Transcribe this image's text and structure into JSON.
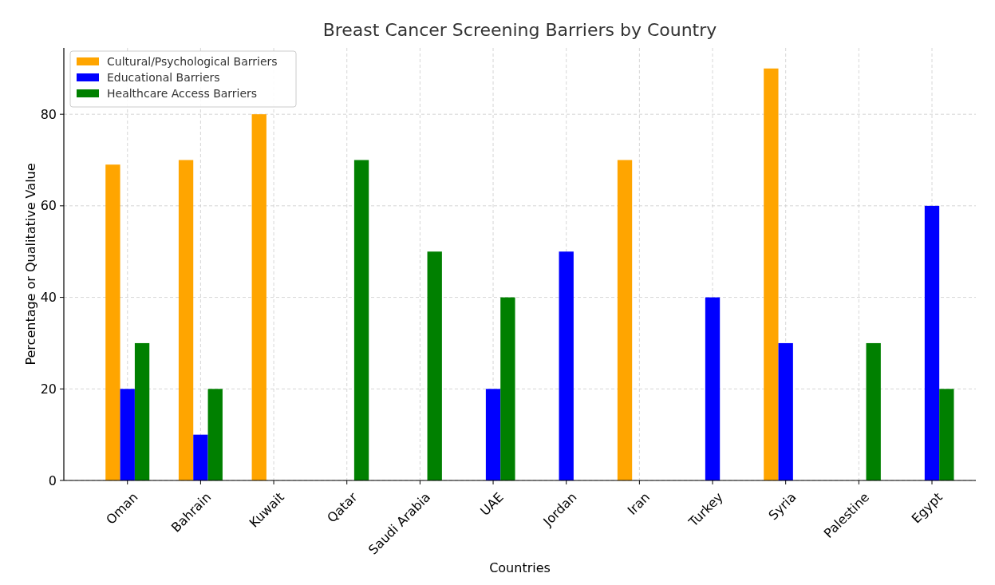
{
  "chart_data": {
    "type": "bar",
    "title": "Breast Cancer Screening Barriers by Country",
    "xlabel": "Countries",
    "ylabel": "Percentage or Qualitative Value",
    "categories": [
      "Oman",
      "Bahrain",
      "Kuwait",
      "Qatar",
      "Saudi Arabia",
      "UAE",
      "Jordan",
      "Iran",
      "Turkey",
      "Syria",
      "Palestine",
      "Egypt"
    ],
    "series": [
      {
        "name": "Cultural/Psychological Barriers",
        "color": "#ffa500",
        "values": [
          69,
          70,
          80,
          0,
          0,
          0,
          0,
          70,
          0,
          90,
          0,
          0
        ]
      },
      {
        "name": "Educational Barriers",
        "color": "#0000ff",
        "values": [
          20,
          10,
          0,
          0,
          0,
          20,
          50,
          0,
          40,
          30,
          0,
          60
        ]
      },
      {
        "name": "Healthcare Access Barriers",
        "color": "#008000",
        "values": [
          30,
          20,
          0,
          70,
          50,
          40,
          0,
          0,
          0,
          0,
          30,
          20
        ]
      }
    ],
    "ylim": [
      0,
      94.5
    ],
    "yticks": [
      0,
      20,
      40,
      60,
      80
    ],
    "grid": true,
    "legend": "top left"
  }
}
